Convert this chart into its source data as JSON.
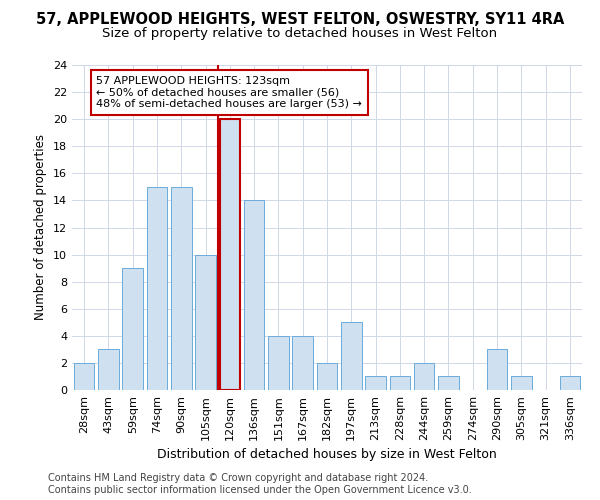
{
  "title": "57, APPLEWOOD HEIGHTS, WEST FELTON, OSWESTRY, SY11 4RA",
  "subtitle": "Size of property relative to detached houses in West Felton",
  "xlabel": "Distribution of detached houses by size in West Felton",
  "ylabel": "Number of detached properties",
  "categories": [
    "28sqm",
    "43sqm",
    "59sqm",
    "74sqm",
    "90sqm",
    "105sqm",
    "120sqm",
    "136sqm",
    "151sqm",
    "167sqm",
    "182sqm",
    "197sqm",
    "213sqm",
    "228sqm",
    "244sqm",
    "259sqm",
    "274sqm",
    "290sqm",
    "305sqm",
    "321sqm",
    "336sqm"
  ],
  "values": [
    2,
    3,
    9,
    15,
    15,
    10,
    20,
    14,
    4,
    4,
    2,
    5,
    1,
    1,
    2,
    1,
    0,
    3,
    1,
    0,
    1
  ],
  "bar_color": "#cfe0f0",
  "bar_edgecolor": "#6aabdb",
  "highlight_index": 6,
  "highlight_line_color": "#c00000",
  "highlight_bar_edgecolor": "#c00000",
  "annotation_text": "57 APPLEWOOD HEIGHTS: 123sqm\n← 50% of detached houses are smaller (56)\n48% of semi-detached houses are larger (53) →",
  "annotation_box_edgecolor": "#c00000",
  "ylim": [
    0,
    24
  ],
  "yticks": [
    0,
    2,
    4,
    6,
    8,
    10,
    12,
    14,
    16,
    18,
    20,
    22,
    24
  ],
  "footer_line1": "Contains HM Land Registry data © Crown copyright and database right 2024.",
  "footer_line2": "Contains public sector information licensed under the Open Government Licence v3.0.",
  "title_fontsize": 10.5,
  "subtitle_fontsize": 9.5,
  "xlabel_fontsize": 9,
  "ylabel_fontsize": 8.5,
  "tick_fontsize": 8,
  "annotation_fontsize": 8,
  "footer_fontsize": 7,
  "background_color": "#ffffff",
  "grid_color": "#d0d8e8"
}
